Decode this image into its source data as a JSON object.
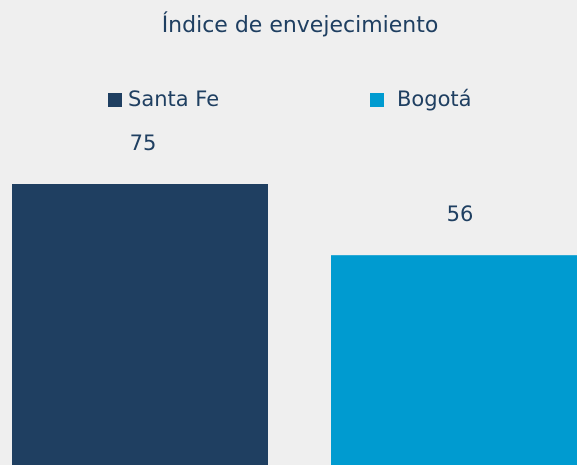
{
  "chart_data": {
    "type": "bar",
    "title": "Índice de envejecimiento",
    "series": [
      {
        "name": "Santa Fe",
        "color": "#1f3f61",
        "values": [
          75
        ]
      },
      {
        "name": "Bogotá",
        "color": "#009bd0",
        "values": [
          56
        ]
      }
    ],
    "legend": "top"
  }
}
